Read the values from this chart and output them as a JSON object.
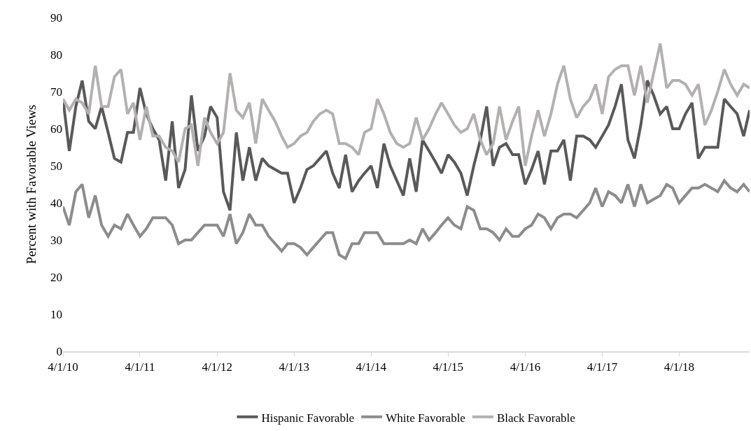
{
  "chart_data": {
    "type": "line",
    "ylabel": "Percent with Favorable Views",
    "x": [
      "2010-04",
      "2010-05",
      "2010-06",
      "2010-07",
      "2010-08",
      "2010-09",
      "2010-10",
      "2010-11",
      "2010-12",
      "2011-01",
      "2011-02",
      "2011-03",
      "2011-04",
      "2011-05",
      "2011-06",
      "2011-07",
      "2011-08",
      "2011-09",
      "2011-10",
      "2011-11",
      "2011-12",
      "2012-01",
      "2012-02",
      "2012-03",
      "2012-04",
      "2012-05",
      "2012-06",
      "2012-07",
      "2012-08",
      "2012-09",
      "2012-10",
      "2012-11",
      "2012-12",
      "2013-01",
      "2013-02",
      "2013-03",
      "2013-04",
      "2013-05",
      "2013-06",
      "2013-07",
      "2013-08",
      "2013-09",
      "2013-10",
      "2013-11",
      "2013-12",
      "2014-01",
      "2014-02",
      "2014-03",
      "2014-04",
      "2014-05",
      "2014-06",
      "2014-07",
      "2014-08",
      "2014-09",
      "2014-10",
      "2014-11",
      "2014-12",
      "2015-01",
      "2015-02",
      "2015-03",
      "2015-04",
      "2015-05",
      "2015-06",
      "2015-07",
      "2015-08",
      "2015-09",
      "2015-10",
      "2015-11",
      "2015-12",
      "2016-01",
      "2016-02",
      "2016-03",
      "2016-04",
      "2016-05",
      "2016-06",
      "2016-07",
      "2016-08",
      "2016-09",
      "2016-10",
      "2016-11",
      "2016-12",
      "2017-01",
      "2017-02",
      "2017-03",
      "2017-04",
      "2017-05",
      "2017-06",
      "2017-07",
      "2017-08",
      "2017-09",
      "2017-10",
      "2017-11",
      "2017-12",
      "2018-01",
      "2018-02",
      "2018-03",
      "2018-04",
      "2018-05",
      "2018-06",
      "2018-07",
      "2018-08",
      "2018-09",
      "2018-10",
      "2018-11",
      "2018-12",
      "2019-01",
      "2019-02",
      "2019-03"
    ],
    "series": [
      {
        "name": "Hispanic Favorable",
        "color": "#595959",
        "values": [
          68,
          54,
          66,
          73,
          62,
          60,
          66,
          59,
          52,
          51,
          59,
          59,
          71,
          64,
          60,
          57,
          46,
          62,
          44,
          49,
          69,
          54,
          58,
          66,
          63,
          43,
          38,
          59,
          46,
          55,
          46,
          52,
          50,
          49,
          48,
          48,
          40,
          44,
          49,
          50,
          52,
          54,
          48,
          44,
          53,
          43,
          46,
          48,
          50,
          44,
          56,
          50,
          46,
          42,
          52,
          43,
          57,
          54,
          51,
          48,
          53,
          51,
          48,
          42,
          50,
          57,
          66,
          50,
          55,
          56,
          53,
          53,
          45,
          49,
          54,
          45,
          54,
          54,
          57,
          46,
          58,
          58,
          57,
          55,
          58,
          61,
          66,
          72,
          57,
          52,
          61,
          73,
          69,
          64,
          66,
          60,
          60,
          64,
          67,
          52,
          55,
          55,
          55,
          68,
          66,
          64,
          58,
          65
        ]
      },
      {
        "name": "White Favorable",
        "color": "#8c8c8c",
        "values": [
          39,
          34,
          43,
          45,
          36,
          42,
          34,
          31,
          34,
          33,
          37,
          34,
          31,
          33,
          36,
          36,
          36,
          34,
          29,
          30,
          30,
          32,
          34,
          34,
          34,
          31,
          37,
          29,
          32,
          37,
          34,
          34,
          31,
          29,
          27,
          29,
          29,
          28,
          26,
          28,
          30,
          32,
          32,
          26,
          25,
          29,
          29,
          32,
          32,
          32,
          29,
          29,
          29,
          29,
          30,
          29,
          33,
          30,
          32,
          34,
          36,
          34,
          33,
          39,
          38,
          33,
          33,
          32,
          30,
          33,
          31,
          31,
          33,
          34,
          37,
          36,
          33,
          36,
          37,
          37,
          36,
          38,
          40,
          44,
          39,
          43,
          42,
          40,
          45,
          39,
          45,
          40,
          41,
          42,
          45,
          44,
          40,
          42,
          44,
          44,
          45,
          44,
          43,
          46,
          44,
          43,
          45,
          43
        ]
      },
      {
        "name": "Black Favorable",
        "color": "#b3b0b0",
        "values": [
          68,
          65,
          68,
          67,
          64,
          77,
          66,
          66,
          74,
          76,
          64,
          67,
          57,
          66,
          58,
          58,
          55,
          54,
          51,
          60,
          61,
          50,
          63,
          59,
          56,
          59,
          75,
          65,
          63,
          67,
          56,
          68,
          65,
          62,
          58,
          55,
          56,
          58,
          59,
          62,
          64,
          65,
          64,
          56,
          56,
          55,
          53,
          59,
          60,
          68,
          64,
          59,
          56,
          55,
          56,
          63,
          57,
          60,
          64,
          67,
          64,
          61,
          59,
          60,
          64,
          57,
          53,
          56,
          66,
          57,
          62,
          66,
          50,
          58,
          65,
          58,
          64,
          72,
          77,
          68,
          63,
          66,
          68,
          72,
          64,
          74,
          76,
          77,
          77,
          69,
          77,
          67,
          75,
          83,
          71,
          73,
          73,
          72,
          69,
          72,
          61,
          65,
          70,
          76,
          72,
          69,
          72,
          71
        ]
      }
    ],
    "xlim": [
      "2010-04-01",
      "2019-03-01"
    ],
    "xticks": [
      {
        "value": "2010-04-01",
        "label": "4/1/10"
      },
      {
        "value": "2011-04-01",
        "label": "4/1/11"
      },
      {
        "value": "2012-04-01",
        "label": "4/1/12"
      },
      {
        "value": "2013-04-01",
        "label": "4/1/13"
      },
      {
        "value": "2014-04-01",
        "label": "4/1/14"
      },
      {
        "value": "2015-04-01",
        "label": "4/1/15"
      },
      {
        "value": "2016-04-01",
        "label": "4/1/16"
      },
      {
        "value": "2017-04-01",
        "label": "4/1/17"
      },
      {
        "value": "2018-04-01",
        "label": "4/1/18"
      }
    ],
    "ylim": [
      0,
      90
    ],
    "yticks": [
      0,
      10,
      20,
      30,
      40,
      50,
      60,
      70,
      80,
      90
    ],
    "legend": "bottom",
    "line_style": "solid",
    "marker": "none"
  }
}
